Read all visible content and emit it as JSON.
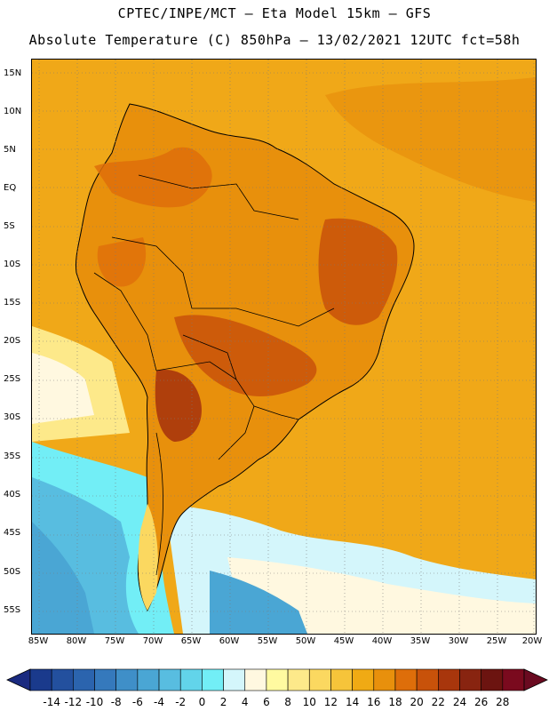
{
  "header": {
    "line1": "CPTEC/INPE/MCT –  Eta Model 15km – GFS",
    "line2": "Absolute Temperature (C) 850hPa – 13/02/2021 12UTC fct=58h"
  },
  "map": {
    "lat_ticks": [
      "15N",
      "10N",
      "5N",
      "EQ",
      "5S",
      "10S",
      "15S",
      "20S",
      "25S",
      "30S",
      "35S",
      "40S",
      "45S",
      "50S",
      "55S"
    ],
    "lon_ticks": [
      "85W",
      "80W",
      "75W",
      "70W",
      "65W",
      "60W",
      "55W",
      "50W",
      "45W",
      "40W",
      "35W",
      "30W",
      "25W",
      "20W"
    ]
  },
  "colorbar": {
    "labels": [
      "-14",
      "-12",
      "-10",
      "-8",
      "-6",
      "-4",
      "-2",
      "0",
      "2",
      "4",
      "6",
      "8",
      "10",
      "12",
      "14",
      "16",
      "18",
      "20",
      "22",
      "24",
      "26",
      "28"
    ],
    "colors": [
      "#1a3a8c",
      "#23509e",
      "#2b64ae",
      "#3579bc",
      "#3f8fc8",
      "#4aa6d4",
      "#58bde0",
      "#62d4ea",
      "#72eef6",
      "#d4f6fb",
      "#fff8e0",
      "#fffaa0",
      "#fde98a",
      "#fbd860",
      "#f6c43a",
      "#f0aa14",
      "#e8900c",
      "#de6e0a",
      "#c8520a",
      "#a8360c",
      "#882410",
      "#6c1410",
      "#7a0a1e"
    ],
    "under_color": "#1a2a80",
    "over_color": "#6a0a20"
  }
}
